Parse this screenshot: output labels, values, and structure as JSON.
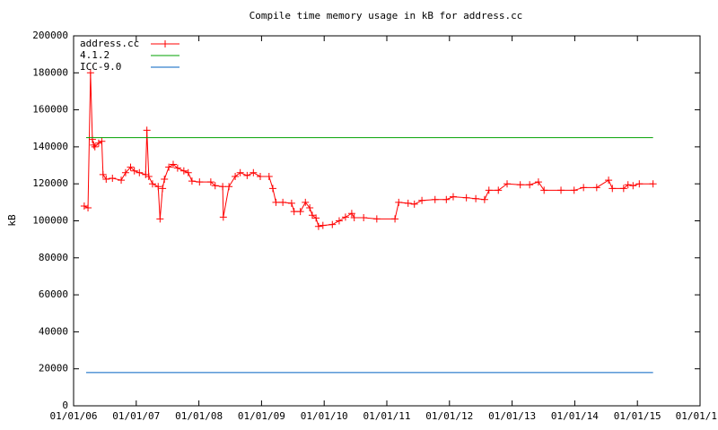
{
  "chart_data": {
    "type": "line",
    "title": "Compile time memory usage in kB for address.cc",
    "y_label": "kB",
    "xlim": [
      2006,
      2016
    ],
    "ylim": [
      0,
      200000
    ],
    "xticks": [
      {
        "value": 2006,
        "label": "01/01/06"
      },
      {
        "value": 2007,
        "label": "01/01/07"
      },
      {
        "value": 2008,
        "label": "01/01/08"
      },
      {
        "value": 2009,
        "label": "01/01/09"
      },
      {
        "value": 2010,
        "label": "01/01/10"
      },
      {
        "value": 2011,
        "label": "01/01/11"
      },
      {
        "value": 2012,
        "label": "01/01/12"
      },
      {
        "value": 2013,
        "label": "01/01/13"
      },
      {
        "value": 2014,
        "label": "01/01/14"
      },
      {
        "value": 2015,
        "label": "01/01/15"
      },
      {
        "value": 2016,
        "label": "01/01/1"
      }
    ],
    "yticks": [
      0,
      20000,
      40000,
      60000,
      80000,
      100000,
      120000,
      140000,
      160000,
      180000,
      200000
    ],
    "legend": "top-left",
    "series": [
      {
        "name": "address.cc",
        "color": "#ff0000",
        "markers": true,
        "x": [
          2006.17,
          2006.23,
          2006.27,
          2006.3,
          2006.32,
          2006.34,
          2006.4,
          2006.45,
          2006.47,
          2006.52,
          2006.62,
          2006.76,
          2006.83,
          2006.91,
          2006.97,
          2007.05,
          2007.15,
          2007.17,
          2007.2,
          2007.26,
          2007.35,
          2007.38,
          2007.42,
          2007.45,
          2007.52,
          2007.59,
          2007.66,
          2007.76,
          2007.83,
          2007.89,
          2008.01,
          2008.19,
          2008.26,
          2008.38,
          2008.39,
          2008.48,
          2008.58,
          2008.66,
          2008.77,
          2008.87,
          2008.98,
          2009.12,
          2009.18,
          2009.23,
          2009.34,
          2009.48,
          2009.52,
          2009.62,
          2009.7,
          2009.77,
          2009.81,
          2009.87,
          2009.91,
          2009.98,
          2010.13,
          2010.24,
          2010.34,
          2010.44,
          2010.48,
          2010.63,
          2010.84,
          2011.13,
          2011.19,
          2011.34,
          2011.44,
          2011.56,
          2011.77,
          2011.95,
          2012.06,
          2012.27,
          2012.42,
          2012.56,
          2012.63,
          2012.78,
          2012.92,
          2013.13,
          2013.28,
          2013.42,
          2013.51,
          2013.78,
          2013.99,
          2014.14,
          2014.35,
          2014.54,
          2014.6,
          2014.78,
          2014.85,
          2014.93,
          2015.03,
          2015.25
        ],
        "values": [
          108000,
          107000,
          180000,
          144000,
          141000,
          140000,
          142000,
          143000,
          125000,
          122500,
          123000,
          122000,
          126000,
          129000,
          127000,
          126000,
          125000,
          149000,
          124000,
          120000,
          118500,
          101000,
          117500,
          122500,
          129000,
          130500,
          128500,
          127000,
          126000,
          121500,
          121000,
          121000,
          119000,
          118500,
          102000,
          118500,
          124000,
          126000,
          124500,
          126000,
          124000,
          124000,
          117500,
          110000,
          110000,
          109500,
          105000,
          105000,
          110000,
          107000,
          103000,
          101500,
          97000,
          97500,
          98000,
          100000,
          102000,
          104000,
          101700,
          101700,
          101000,
          101000,
          110000,
          109500,
          109000,
          111000,
          111500,
          111500,
          113000,
          112500,
          112000,
          111500,
          116500,
          116500,
          120000,
          119500,
          119500,
          121000,
          116500,
          116500,
          116500,
          118000,
          118000,
          122000,
          117500,
          117500,
          119500,
          119000,
          120000,
          120000
        ]
      },
      {
        "name": "4.1.2",
        "color": "#00a000",
        "x": [
          2006.2,
          2015.25
        ],
        "values": [
          145000,
          145000
        ]
      },
      {
        "name": "ICC-9.0",
        "color": "#0060c0",
        "x": [
          2006.2,
          2015.25
        ],
        "values": [
          18000,
          18000
        ]
      }
    ]
  }
}
